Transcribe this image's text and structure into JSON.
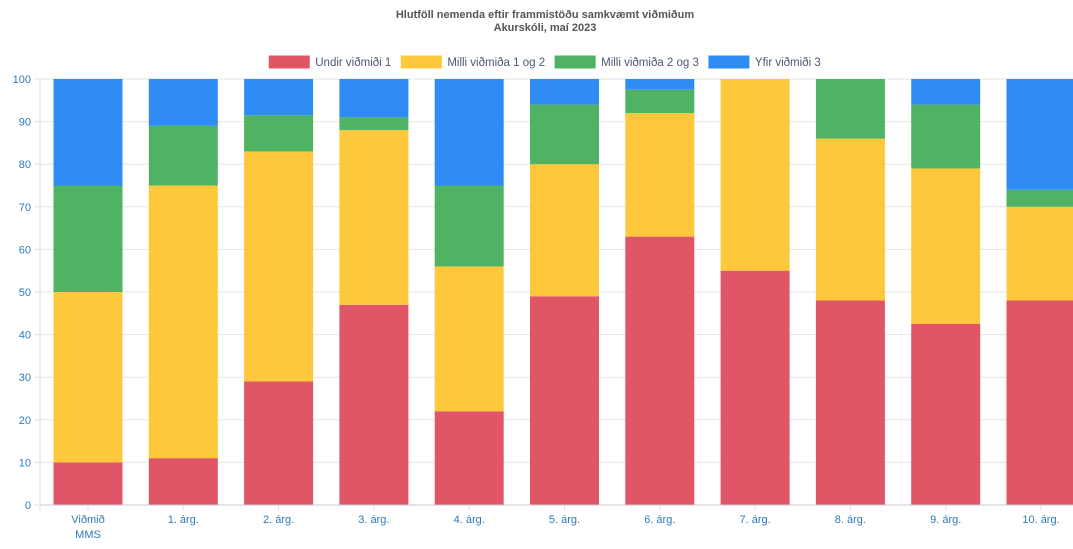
{
  "chart_data": {
    "type": "bar",
    "stacked": true,
    "title": "Hlutföll nemenda eftir frammistöðu samkvæmt viðmiðum",
    "subtitle": "Akurskóli, maí 2023",
    "categories": [
      [
        "Viðmið",
        "MMS"
      ],
      [
        "1. árg."
      ],
      [
        "2. árg."
      ],
      [
        "3. árg."
      ],
      [
        "4. árg."
      ],
      [
        "5. árg."
      ],
      [
        "6. árg."
      ],
      [
        "7. árg."
      ],
      [
        "8. árg."
      ],
      [
        "9. árg."
      ],
      [
        "10. árg."
      ]
    ],
    "series": [
      {
        "name": "Undir viðmiði 1",
        "color": "#e05666",
        "values": [
          10,
          11,
          29,
          47,
          22,
          49,
          63,
          55,
          48,
          42.5,
          48
        ]
      },
      {
        "name": "Milli viðmiða 1 og 2",
        "color": "#fec83c",
        "values": [
          40,
          64,
          54,
          41,
          34,
          31,
          29,
          45,
          38,
          36.5,
          22
        ]
      },
      {
        "name": "Milli viðmiða 2 og 3",
        "color": "#4fb363",
        "values": [
          25,
          14,
          8.5,
          3,
          19,
          14,
          5.5,
          0,
          14,
          15,
          4
        ]
      },
      {
        "name": "Yfir viðmiði 3",
        "color": "#2f8cf5",
        "values": [
          25,
          11,
          8.5,
          9,
          25,
          6,
          2.5,
          0,
          0,
          6,
          26
        ]
      }
    ],
    "ylim": [
      0,
      100
    ],
    "yticks": [
      0,
      10,
      20,
      30,
      40,
      50,
      60,
      70,
      80,
      90,
      100
    ],
    "grid": true,
    "legend": "top-center"
  }
}
